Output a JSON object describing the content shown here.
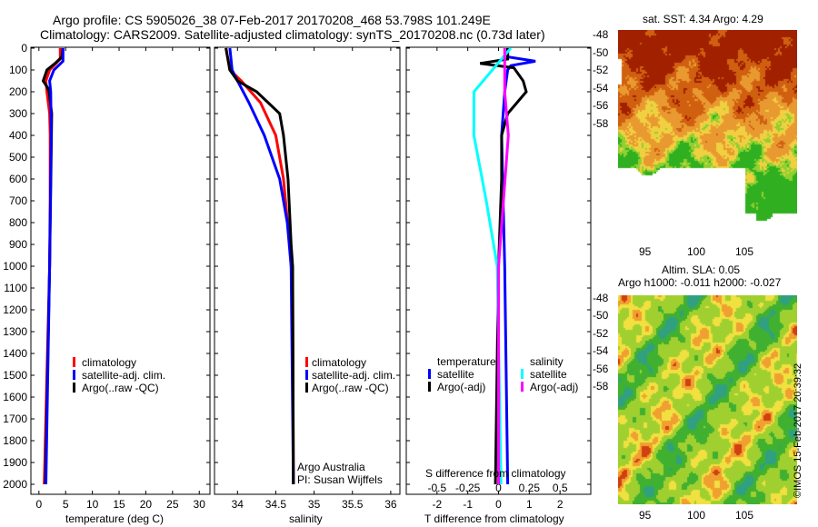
{
  "header": {
    "line1": "Argo profile: CS 5905026_38 07-Feb-2017 20170208_468 53.798S 101.249E",
    "line2": "Climatology: CARS2009. Satellite-adjusted climatology: synTS_20170208.nc (0.73d later)"
  },
  "colors": {
    "climatology": "#ff0000",
    "satellite": "#0000ff",
    "argo": "#000000",
    "sal_sat": "#00ffff",
    "sal_argo": "#ff00ff"
  },
  "chart_data": [
    {
      "type": "line",
      "xlabel": "temperature (deg C)",
      "ylabel": "",
      "xlim": [
        -1.5,
        32
      ],
      "ylim": [
        2050,
        0
      ],
      "xticks": [
        "0",
        "5",
        "10",
        "15",
        "20",
        "25",
        "30"
      ],
      "yticks": [
        "0",
        "100",
        "200",
        "300",
        "400",
        "500",
        "600",
        "700",
        "800",
        "900",
        "1000",
        "1100",
        "1200",
        "1300",
        "1400",
        "1500",
        "1600",
        "1700",
        "1800",
        "1900",
        "2000"
      ],
      "legend": [
        "climatology",
        "satellite-adj. clim.",
        "Argo(..raw -QC)"
      ],
      "series": [
        {
          "name": "climatology",
          "depth": [
            0,
            50,
            100,
            150,
            200,
            300,
            400,
            700,
            1000,
            1500,
            2000
          ],
          "values": [
            4,
            4,
            2,
            1.3,
            1.5,
            2,
            2.1,
            2.1,
            2,
            1.5,
            1.0
          ]
        },
        {
          "name": "Argo(..raw -QC)",
          "depth": [
            0,
            40,
            70,
            100,
            150,
            180,
            200,
            300,
            500,
            1000,
            1500,
            2000
          ],
          "values": [
            4.5,
            4.3,
            3,
            1.5,
            0.8,
            1.6,
            1.9,
            2.4,
            2.3,
            2,
            1.6,
            1.2
          ]
        },
        {
          "name": "satellite-adj. clim.",
          "depth": [
            0,
            60,
            100,
            150,
            200,
            400,
            1000,
            2000
          ],
          "values": [
            4.5,
            4.5,
            2.8,
            2,
            2.2,
            2.3,
            2,
            1.3
          ]
        }
      ]
    },
    {
      "type": "line",
      "xlabel": "salinity",
      "xlim": [
        33.7,
        36.1
      ],
      "ylim": [
        2050,
        0
      ],
      "xticks": [
        "34",
        "34.5",
        "35",
        "35.5",
        "36"
      ],
      "legend": [
        "climatology",
        "satellite-adj. clim.",
        "Argo(..raw -QC)"
      ],
      "annotation": [
        "Argo Australia",
        "PI: Susan Wijffels"
      ],
      "series": [
        {
          "name": "climatology",
          "depth": [
            0,
            100,
            150,
            250,
            400,
            600,
            900,
            1100,
            2000
          ],
          "values": [
            33.85,
            33.9,
            34.05,
            34.3,
            34.5,
            34.6,
            34.68,
            34.72,
            34.73
          ]
        },
        {
          "name": "satellite-adj. clim.",
          "depth": [
            0,
            100,
            150,
            250,
            400,
            600,
            800,
            1000,
            2000
          ],
          "values": [
            33.9,
            33.93,
            34.0,
            34.15,
            34.35,
            34.55,
            34.65,
            34.7,
            34.73
          ]
        },
        {
          "name": "Argo(..raw -QC)",
          "depth": [
            0,
            100,
            150,
            200,
            300,
            400,
            600,
            900,
            1000,
            2000
          ],
          "values": [
            33.85,
            33.9,
            34.0,
            34.25,
            34.55,
            34.6,
            34.66,
            34.7,
            34.72,
            34.73
          ]
        }
      ]
    },
    {
      "type": "line",
      "xlabel": "T difference from climatology",
      "x2label": "S difference from climatology",
      "xlim": [
        -3,
        3
      ],
      "ylim": [
        2050,
        0
      ],
      "xticks": [
        "-2",
        "-1",
        "0",
        "1",
        "2"
      ],
      "x2ticks": [
        "-0.5",
        "-0.25",
        "0",
        "0.25",
        "0.5"
      ],
      "legend_t": {
        "title": "temperature",
        "items": [
          "satellite",
          "Argo(-adj)"
        ]
      },
      "legend_s": {
        "title": "salinity",
        "items": [
          "satellite",
          "Argo(-adj)"
        ]
      },
      "series": [
        {
          "name": "T satellite",
          "depth": [
            0,
            40,
            60,
            80,
            100,
            200,
            400,
            1000,
            2000
          ],
          "values": [
            0.3,
            0.3,
            1.2,
            0.4,
            0.3,
            0.2,
            0.1,
            0.2,
            0.3
          ]
        },
        {
          "name": "T Argo(-adj)",
          "depth": [
            0,
            50,
            70,
            90,
            150,
            200,
            300,
            400,
            600,
            1000,
            2000
          ],
          "values": [
            0.3,
            0.3,
            -0.6,
            0.5,
            0.8,
            0.9,
            0.3,
            0.1,
            0.1,
            0,
            -0.1
          ]
        },
        {
          "name": "S satellite",
          "depth": [
            0,
            100,
            200,
            400,
            700,
            1000,
            2000
          ],
          "values": [
            0.1,
            -0.05,
            -0.2,
            -0.2,
            -0.1,
            -0.01,
            0.02
          ]
        },
        {
          "name": "S Argo(-adj)",
          "depth": [
            0,
            200,
            400,
            1000,
            2000
          ],
          "values": [
            0.05,
            0.05,
            0.08,
            0.0,
            0.0
          ]
        }
      ]
    }
  ],
  "maps": {
    "sst_title": "sat. SST: 4.34 Argo: 4.29",
    "sla_title1": "Altim. SLA: 0.05",
    "sla_title2": "Argo h1000: -0.011 h2000: -0.027",
    "lat_ticks": [
      "-48",
      "-50",
      "-52",
      "-54",
      "-56",
      "-58"
    ],
    "lon_ticks": [
      "95",
      "100",
      "105"
    ],
    "stamp": "©IMOS 15-Feb-2017 20:39:32"
  }
}
